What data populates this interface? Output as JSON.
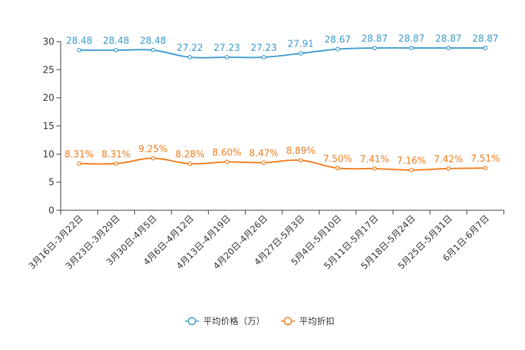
{
  "chart_data": {
    "type": "line",
    "categories": [
      "3月16日-3月22日",
      "3月23日-3月29日",
      "3月30日-4月5日",
      "4月6日-4月12日",
      "4月13日-4月19日",
      "4月20日-4月26日",
      "4月27日-5月3日",
      "5月4日-5月10日",
      "5月11日-5月17日",
      "5月18日-5月24日",
      "5月25日-5月31日",
      "6月1日-6月7日"
    ],
    "ylim": [
      0,
      30
    ],
    "yticks": [
      0,
      5,
      10,
      15,
      20,
      25,
      30
    ],
    "series": [
      {
        "name": "平均价格（万）",
        "color": "#3a9bcd",
        "values": [
          28.48,
          28.48,
          28.48,
          27.22,
          27.23,
          27.23,
          27.91,
          28.67,
          28.87,
          28.87,
          28.87,
          28.87
        ],
        "labels": [
          "28.48",
          "28.48",
          "28.48",
          "27.22",
          "27.23",
          "27.23",
          "27.91",
          "28.67",
          "28.87",
          "28.87",
          "28.87",
          "28.87"
        ]
      },
      {
        "name": "平均折扣",
        "color": "#f07c1b",
        "values": [
          8.31,
          8.31,
          9.25,
          8.28,
          8.6,
          8.47,
          8.89,
          7.5,
          7.41,
          7.16,
          7.42,
          7.51
        ],
        "labels": [
          "8.31%",
          "8.31%",
          "9.25%",
          "8.28%",
          "8.60%",
          "8.47%",
          "8.89%",
          "7.50%",
          "7.41%",
          "7.16%",
          "7.42%",
          "7.51%"
        ]
      }
    ],
    "legend_position": "bottom-center"
  }
}
